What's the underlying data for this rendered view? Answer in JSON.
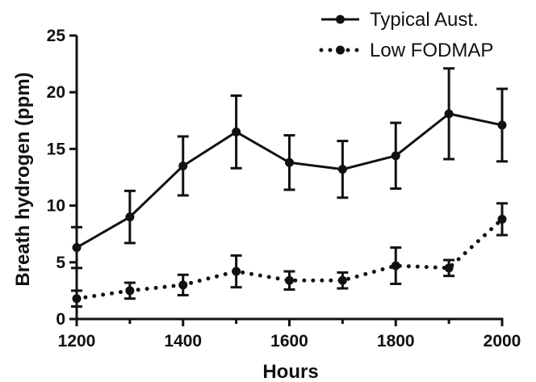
{
  "chart_data": {
    "type": "line",
    "xlabel": "Hours",
    "ylabel": "Breath hydrogen (ppm)",
    "x": [
      1200,
      1300,
      1400,
      1500,
      1600,
      1700,
      1800,
      1900,
      2000
    ],
    "xlim": [
      1200,
      2000
    ],
    "ylim": [
      0,
      25
    ],
    "x_ticks": [
      "1200",
      "1400",
      "1600",
      "1800",
      "2000"
    ],
    "x_minor_ticks": [
      1300,
      1500,
      1700,
      1900
    ],
    "y_ticks": [
      "0",
      "5",
      "10",
      "15",
      "20",
      "25"
    ],
    "grid": false,
    "legend_position": "top-right",
    "series": [
      {
        "name": "Typical Aust.",
        "style": "solid",
        "color": "#111111",
        "values": [
          6.3,
          9.0,
          13.5,
          16.5,
          13.8,
          13.2,
          14.4,
          18.1,
          17.1
        ],
        "error": [
          1.8,
          2.3,
          2.6,
          3.2,
          2.4,
          2.5,
          2.9,
          4.0,
          3.2
        ]
      },
      {
        "name": "Low FODMAP",
        "style": "dotted",
        "color": "#111111",
        "values": [
          1.8,
          2.5,
          3.0,
          4.2,
          3.4,
          3.4,
          4.7,
          4.5,
          8.8
        ],
        "error": [
          0.7,
          0.7,
          0.9,
          1.4,
          0.8,
          0.7,
          1.6,
          0.7,
          1.4
        ]
      }
    ]
  }
}
